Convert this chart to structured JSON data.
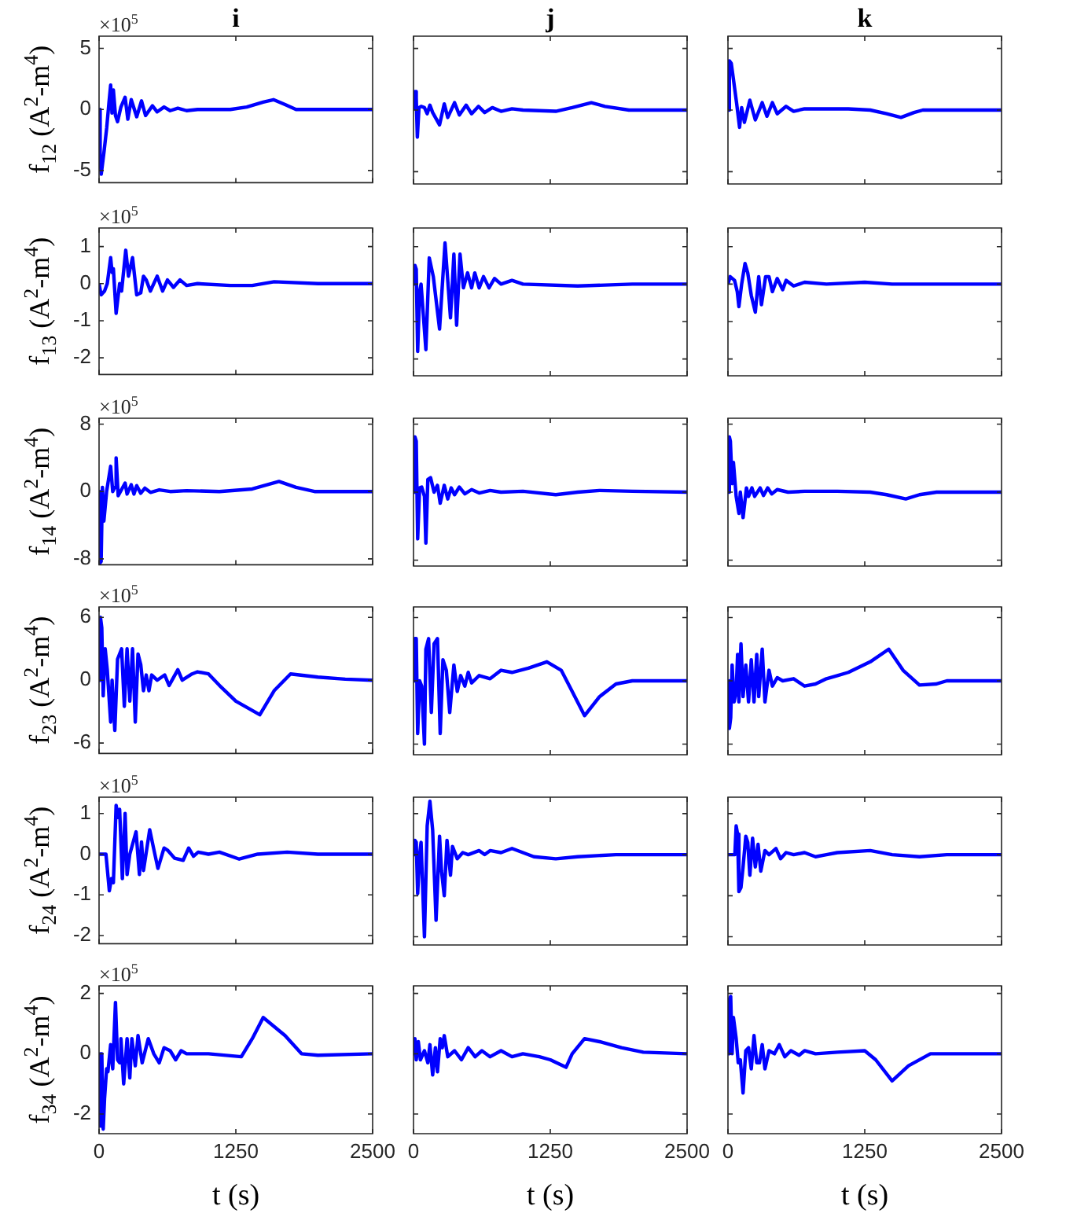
{
  "chart_data": [
    {
      "type": "line",
      "title": "i",
      "ylabel": "f$_{12}$ (A$^{2}$-m$^{4}$)",
      "annotations": [
        "×10$^{5}$"
      ],
      "tick_labels": "y",
      "xlim": [
        0,
        2500
      ],
      "xticks": [
        0,
        1250,
        2500
      ],
      "ylim": [
        -6,
        6
      ],
      "yticks": [
        -5,
        0,
        5
      ],
      "x": [
        0,
        10,
        20,
        45,
        70,
        90,
        106,
        118,
        131,
        150,
        169,
        200,
        238,
        263,
        294,
        344,
        388,
        425,
        488,
        531,
        594,
        650,
        720,
        800,
        900,
        1200,
        1350,
        1500,
        1594,
        1700,
        1800,
        1900,
        2100,
        2500
      ],
      "series": [
        {
          "color": "#0000ff",
          "values": [
            0,
            -4,
            -5.3,
            -3.5,
            -1.5,
            0.5,
            2,
            -0.3,
            1.6,
            -0.5,
            -1,
            0.2,
            1,
            -0.8,
            0.8,
            -0.6,
            0.7,
            -0.5,
            0.3,
            -0.2,
            0.2,
            -0.1,
            0.1,
            -0.1,
            0,
            0,
            0.2,
            0.6,
            0.8,
            0.4,
            0,
            0,
            0,
            0
          ]
        }
      ]
    },
    {
      "type": "line",
      "title": "j",
      "tick_labels": false,
      "xlim": [
        0,
        2500
      ],
      "xticks": [
        0,
        1250,
        2500
      ],
      "ylim": [
        -6,
        6
      ],
      "yticks": [
        -5,
        0,
        5
      ],
      "x": [
        0,
        15,
        25,
        35,
        50,
        70,
        100,
        125,
        150,
        175,
        200,
        238,
        281,
        313,
        375,
        419,
        481,
        531,
        594,
        650,
        720,
        800,
        900,
        1000,
        1300,
        1450,
        1625,
        1750,
        1969,
        2500
      ],
      "series": [
        {
          "color": "#0000ff",
          "values": [
            0,
            1.5,
            1,
            -2.2,
            0.2,
            0.3,
            0.2,
            -0.3,
            0.4,
            -0.2,
            -0.6,
            -1.2,
            0.5,
            -0.6,
            0.6,
            -0.4,
            0.4,
            -0.3,
            0.3,
            -0.2,
            0.2,
            -0.1,
            0.1,
            0,
            -0.1,
            0.2,
            0.6,
            0.3,
            0,
            0
          ]
        }
      ]
    },
    {
      "type": "line",
      "title": "k",
      "tick_labels": false,
      "xlim": [
        0,
        2500
      ],
      "xticks": [
        0,
        1250,
        2500
      ],
      "ylim": [
        -6,
        6
      ],
      "yticks": [
        -5,
        0,
        5
      ],
      "x": [
        0,
        13,
        30,
        50,
        80,
        106,
        125,
        150,
        200,
        250,
        313,
        356,
        406,
        450,
        531,
        600,
        700,
        900,
        1100,
        1300,
        1450,
        1581,
        1700,
        1781,
        2000,
        2500
      ],
      "series": [
        {
          "color": "#0000ff",
          "values": [
            0,
            4,
            3.8,
            2.5,
            0.5,
            -1.4,
            0.2,
            -1,
            0.8,
            -0.8,
            0.6,
            -0.5,
            0.6,
            -0.3,
            0.3,
            -0.1,
            0.1,
            0.1,
            0.1,
            0,
            -0.3,
            -0.6,
            -0.2,
            0,
            0,
            0
          ]
        }
      ]
    },
    {
      "type": "line",
      "ylabel": "f$_{13}$ (A$^{2}$-m$^{4}$)",
      "annotations": [
        "×10$^{5}$"
      ],
      "tick_labels": "y",
      "xlim": [
        0,
        2500
      ],
      "xticks": [
        0,
        1250,
        2500
      ],
      "ylim": [
        -2.45,
        1.5
      ],
      "yticks": [
        -2,
        -1,
        0,
        1
      ],
      "x": [
        0,
        19,
        50,
        75,
        106,
        119,
        131,
        156,
        188,
        206,
        244,
        269,
        306,
        344,
        381,
        406,
        431,
        469,
        531,
        581,
        625,
        680,
        740,
        800,
        900,
        1200,
        1400,
        1600,
        2000,
        2500
      ],
      "series": [
        {
          "color": "#0000ff",
          "values": [
            0,
            -0.3,
            -0.2,
            0,
            0.7,
            0.3,
            0.4,
            -0.8,
            0,
            -0.2,
            0.9,
            0.2,
            0.7,
            -0.3,
            -0.25,
            0.2,
            0.1,
            -0.2,
            0.2,
            -0.2,
            0.1,
            -0.1,
            0.1,
            -0.05,
            0,
            -0.05,
            -0.05,
            0.05,
            0,
            0
          ]
        }
      ]
    },
    {
      "type": "line",
      "tick_labels": false,
      "xlim": [
        0,
        2500
      ],
      "xticks": [
        0,
        1250,
        2500
      ],
      "ylim": [
        -2.45,
        1.5
      ],
      "yticks": [
        -2,
        -1,
        0,
        1
      ],
      "x": [
        0,
        13,
        25,
        38,
        56,
        69,
        113,
        144,
        181,
        238,
        288,
        338,
        369,
        394,
        425,
        456,
        494,
        531,
        560,
        600,
        640,
        690,
        740,
        800,
        900,
        1000,
        1500,
        2000,
        2500
      ],
      "series": [
        {
          "color": "#0000ff",
          "values": [
            0,
            0.5,
            0.4,
            -1.8,
            -0.2,
            0,
            -1.75,
            0.7,
            0.2,
            -1.2,
            1.1,
            -0.9,
            0.8,
            -1.1,
            0.8,
            -0.1,
            0.3,
            -0.1,
            0.3,
            -0.1,
            0.2,
            -0.1,
            0.15,
            0,
            0.1,
            0,
            -0.05,
            0,
            0
          ]
        }
      ]
    },
    {
      "type": "line",
      "tick_labels": false,
      "xlim": [
        0,
        2500
      ],
      "xticks": [
        0,
        1250,
        2500
      ],
      "ylim": [
        -2.45,
        1.5
      ],
      "yticks": [
        -2,
        -1,
        0,
        1
      ],
      "x": [
        0,
        20,
        60,
        85,
        100,
        125,
        156,
        181,
        213,
        250,
        281,
        306,
        344,
        375,
        406,
        450,
        500,
        531,
        600,
        700,
        900,
        1250,
        1500,
        2500
      ],
      "series": [
        {
          "color": "#0000ff",
          "values": [
            0,
            0.2,
            0.1,
            -0.2,
            -0.6,
            0,
            0.55,
            0.3,
            -0.3,
            -0.75,
            0.2,
            -0.55,
            0.2,
            0.2,
            -0.2,
            0.15,
            -0.15,
            0.1,
            -0.05,
            0.05,
            0,
            0.05,
            0,
            0
          ]
        }
      ]
    },
    {
      "type": "line",
      "ylabel": "f$_{14}$ (A$^{2}$-m$^{4}$)",
      "annotations": [
        "×10$^{5}$"
      ],
      "tick_labels": "y",
      "xlim": [
        0,
        2500
      ],
      "xticks": [
        0,
        1250,
        2500
      ],
      "ylim": [
        -8.7,
        8.7
      ],
      "yticks": [
        -8,
        0,
        8
      ],
      "x": [
        0,
        8,
        19,
        31,
        44,
        69,
        106,
        125,
        144,
        156,
        175,
        238,
        256,
        294,
        319,
        344,
        381,
        419,
        470,
        550,
        650,
        800,
        1100,
        1400,
        1644,
        1800,
        1969,
        2500
      ],
      "series": [
        {
          "color": "#0000ff",
          "values": [
            0,
            -8.5,
            -8.3,
            0.5,
            -3.5,
            0,
            3,
            0,
            0.5,
            4,
            -0.5,
            1,
            -0.3,
            0.8,
            -0.3,
            0.7,
            -0.2,
            0.4,
            -0.1,
            0.2,
            0,
            0.1,
            0,
            0.3,
            1.2,
            0.5,
            0,
            0
          ]
        }
      ]
    },
    {
      "type": "line",
      "tick_labels": false,
      "xlim": [
        0,
        2500
      ],
      "xticks": [
        0,
        1250,
        2500
      ],
      "ylim": [
        -8.7,
        8.7
      ],
      "yticks": [
        -8,
        0,
        8
      ],
      "x": [
        0,
        13,
        25,
        38,
        56,
        75,
        100,
        113,
        131,
        156,
        188,
        219,
        244,
        281,
        313,
        344,
        375,
        419,
        469,
        531,
        600,
        700,
        800,
        1000,
        1300,
        1500,
        1700,
        2000,
        2500
      ],
      "series": [
        {
          "color": "#0000ff",
          "values": [
            0,
            6.5,
            6,
            -5.5,
            0.5,
            0.6,
            -0.5,
            -6,
            1.5,
            1.7,
            0,
            0.8,
            -1.3,
            0.8,
            -0.8,
            0.5,
            -0.3,
            0.6,
            -0.2,
            0.3,
            -0.1,
            0.2,
            0,
            0.1,
            -0.3,
            0,
            0.2,
            0.1,
            0
          ]
        }
      ]
    },
    {
      "type": "line",
      "tick_labels": false,
      "xlim": [
        0,
        2500
      ],
      "xticks": [
        0,
        1250,
        2500
      ],
      "ylim": [
        -8.7,
        8.7
      ],
      "yticks": [
        -8,
        0,
        8
      ],
      "x": [
        0,
        13,
        22,
        38,
        50,
        75,
        100,
        113,
        138,
        169,
        188,
        219,
        244,
        294,
        325,
        363,
        400,
        450,
        550,
        700,
        1000,
        1300,
        1450,
        1625,
        1750,
        1906,
        2500
      ],
      "series": [
        {
          "color": "#0000ff",
          "values": [
            0,
            6.5,
            6,
            1,
            3.5,
            -0.5,
            -2.5,
            0,
            -3,
            0.5,
            -0.5,
            0.5,
            -0.5,
            0.5,
            -0.4,
            0.5,
            -0.2,
            0.3,
            0,
            0.1,
            0.1,
            0,
            -0.3,
            -0.8,
            -0.3,
            0,
            0
          ]
        }
      ]
    },
    {
      "type": "line",
      "ylabel": "f$_{23}$ (A$^{2}$-m$^{4}$)",
      "annotations": [
        "×10$^{5}$"
      ],
      "tick_labels": "y",
      "xlim": [
        0,
        2500
      ],
      "xticks": [
        0,
        1250,
        2500
      ],
      "ylim": [
        -7,
        7
      ],
      "yticks": [
        -6,
        0,
        6
      ],
      "x": [
        0,
        13,
        25,
        38,
        56,
        75,
        106,
        119,
        144,
        169,
        206,
        231,
        256,
        281,
        306,
        331,
        356,
        381,
        406,
        431,
        456,
        481,
        531,
        600,
        640,
        720,
        760,
        850,
        900,
        1000,
        1100,
        1250,
        1469,
        1600,
        1750,
        2000,
        2250,
        2500
      ],
      "series": [
        {
          "color": "#0000ff",
          "values": [
            0,
            6,
            5,
            -1.5,
            3,
            1,
            -4,
            0,
            -4.8,
            2,
            3,
            -2.5,
            3,
            -2,
            3,
            -4,
            2.5,
            1.5,
            -1,
            0.5,
            -1,
            0.5,
            0,
            0.5,
            -0.5,
            1,
            0,
            0.6,
            0.8,
            0.6,
            -0.5,
            -2,
            -3.3,
            -1,
            0.6,
            0.3,
            0.1,
            0
          ]
        }
      ]
    },
    {
      "type": "line",
      "tick_labels": false,
      "xlim": [
        0,
        2500
      ],
      "xticks": [
        0,
        1250,
        2500
      ],
      "ylim": [
        -7,
        7
      ],
      "yticks": [
        -6,
        0,
        6
      ],
      "x": [
        0,
        13,
        25,
        38,
        56,
        75,
        100,
        113,
        138,
        163,
        188,
        219,
        244,
        269,
        300,
        331,
        369,
        400,
        431,
        469,
        500,
        531,
        600,
        700,
        800,
        900,
        1050,
        1219,
        1350,
        1450,
        1563,
        1700,
        1850,
        2000,
        2500
      ],
      "series": [
        {
          "color": "#0000ff",
          "values": [
            0,
            4,
            4,
            -5,
            0,
            -0.5,
            -6,
            3,
            4,
            -3,
            3.5,
            4,
            -5,
            2,
            1,
            -3,
            1.5,
            -1,
            0.5,
            -0.5,
            0.8,
            -0.2,
            0.5,
            0.2,
            1,
            0.8,
            1.2,
            1.8,
            1,
            -1,
            -3.3,
            -1.5,
            -0.3,
            0,
            0
          ]
        }
      ]
    },
    {
      "type": "line",
      "tick_labels": false,
      "xlim": [
        0,
        2500
      ],
      "xticks": [
        0,
        1250,
        2500
      ],
      "ylim": [
        -7,
        7
      ],
      "yticks": [
        -6,
        0,
        6
      ],
      "x": [
        0,
        13,
        25,
        38,
        56,
        75,
        88,
        100,
        119,
        138,
        163,
        188,
        213,
        238,
        263,
        281,
        313,
        338,
        375,
        406,
        450,
        500,
        600,
        700,
        800,
        900,
        1000,
        1100,
        1300,
        1469,
        1600,
        1750,
        1900,
        2000,
        2500
      ],
      "series": [
        {
          "color": "#0000ff",
          "values": [
            0,
            -4.5,
            -3.5,
            1.5,
            -2,
            -1,
            2.5,
            -2,
            3.5,
            -1.5,
            1.5,
            -2,
            2,
            -2,
            2.5,
            -1.5,
            3,
            -2,
            1,
            -0.5,
            0.3,
            0,
            0.2,
            -0.5,
            -0.3,
            0.2,
            0.5,
            0.8,
            1.8,
            3,
            1,
            -0.4,
            -0.3,
            0,
            0
          ]
        }
      ]
    },
    {
      "type": "line",
      "ylabel": "f$_{24}$ (A$^{2}$-m$^{4}$)",
      "annotations": [
        "×10$^{5}$"
      ],
      "tick_labels": "y",
      "xlim": [
        0,
        2500
      ],
      "xticks": [
        0,
        1250,
        2500
      ],
      "ylim": [
        -2.2,
        1.4
      ],
      "yticks": [
        -2,
        -1,
        0,
        1
      ],
      "x": [
        0,
        63,
        94,
        113,
        131,
        156,
        175,
        188,
        213,
        238,
        256,
        281,
        338,
        369,
        388,
        406,
        463,
        494,
        538,
        594,
        625,
        690,
        769,
        819,
        863,
        906,
        1000,
        1100,
        1281,
        1450,
        1719,
        2000,
        2500
      ],
      "series": [
        {
          "color": "#0000ff",
          "values": [
            0,
            0,
            -0.9,
            -0.6,
            -0.7,
            1.2,
            0.9,
            1.1,
            -0.6,
            1,
            -0.5,
            0,
            0.55,
            -0.5,
            0.3,
            -0.4,
            0.6,
            0.2,
            -0.35,
            0.15,
            0.1,
            -0.1,
            -0.15,
            0.15,
            -0.05,
            0.05,
            0,
            0.05,
            -0.12,
            0,
            0.05,
            0,
            0
          ]
        }
      ]
    },
    {
      "type": "line",
      "tick_labels": false,
      "xlim": [
        0,
        2500
      ],
      "xticks": [
        0,
        1250,
        2500
      ],
      "ylim": [
        -2.2,
        1.4
      ],
      "yticks": [
        -2,
        -1,
        0,
        1
      ],
      "x": [
        0,
        13,
        25,
        38,
        56,
        69,
        100,
        125,
        150,
        175,
        206,
        238,
        256,
        281,
        306,
        338,
        356,
        400,
        450,
        500,
        600,
        650,
        700,
        800,
        900,
        1000,
        1100,
        1300,
        1500,
        1850,
        2500
      ],
      "series": [
        {
          "color": "#0000ff",
          "values": [
            0,
            0.35,
            0.3,
            -0.95,
            0,
            0.3,
            -2,
            0.7,
            1.3,
            0.6,
            -1.6,
            0.45,
            -0.4,
            -1,
            0.35,
            -0.5,
            0.2,
            -0.1,
            0.05,
            0,
            0.1,
            0,
            0.1,
            0.05,
            0.15,
            0.05,
            -0.05,
            -0.1,
            -0.05,
            0,
            0
          ]
        }
      ]
    },
    {
      "type": "line",
      "tick_labels": false,
      "xlim": [
        0,
        2500
      ],
      "xticks": [
        0,
        1250,
        2500
      ],
      "ylim": [
        -2.2,
        1.4
      ],
      "yticks": [
        -2,
        -1,
        0,
        1
      ],
      "x": [
        0,
        63,
        75,
        88,
        100,
        119,
        138,
        163,
        181,
        200,
        225,
        250,
        275,
        300,
        338,
        375,
        438,
        481,
        531,
        600,
        700,
        800,
        900,
        1000,
        1300,
        1500,
        1750,
        2000,
        2500
      ],
      "series": [
        {
          "color": "#0000ff",
          "values": [
            0,
            0,
            0.7,
            0.5,
            -0.9,
            -0.8,
            -0.3,
            0.45,
            0.3,
            -0.5,
            0.4,
            -0.3,
            0.25,
            -0.4,
            0.1,
            0,
            0.15,
            -0.1,
            0.05,
            0,
            0.05,
            -0.05,
            0,
            0.05,
            0.1,
            0,
            -0.05,
            0,
            0
          ]
        }
      ]
    },
    {
      "type": "line",
      "ylabel": "f$_{34}$ (A$^{2}$-m$^{4}$)",
      "xlabel": "t (s)",
      "annotations": [
        "×10$^{5}$"
      ],
      "xlim": [
        0,
        2500
      ],
      "xticks": [
        0,
        1250,
        2500
      ],
      "ylim": [
        -2.65,
        2.25
      ],
      "yticks": [
        -2,
        0,
        2
      ],
      "x": [
        0,
        13,
        25,
        38,
        50,
        69,
        81,
        106,
        125,
        150,
        169,
        188,
        200,
        225,
        256,
        281,
        300,
        331,
        356,
        394,
        450,
        500,
        550,
        594,
        650,
        700,
        750,
        800,
        1000,
        1300,
        1400,
        1500,
        1700,
        1850,
        2000,
        2500
      ],
      "series": [
        {
          "color": "#0000ff",
          "values": [
            0,
            -2.4,
            0,
            -2.5,
            -1.5,
            -0.5,
            -0.6,
            0.3,
            -0.5,
            1.7,
            -0.2,
            -0.3,
            0.5,
            -1,
            0.5,
            -0.8,
            0.5,
            -0.4,
            0.6,
            -0.3,
            0.5,
            0,
            -0.3,
            0.2,
            0.1,
            -0.2,
            0.1,
            0,
            0,
            -0.1,
            0.5,
            1.2,
            0.6,
            0,
            -0.05,
            0
          ]
        }
      ]
    },
    {
      "type": "line",
      "xlabel": "t (s)",
      "tick_labels": "x",
      "xlim": [
        0,
        2500
      ],
      "xticks": [
        0,
        1250,
        2500
      ],
      "ylim": [
        -2.65,
        2.25
      ],
      "yticks": [
        -2,
        0,
        2
      ],
      "x": [
        0,
        13,
        25,
        44,
        63,
        100,
        131,
        150,
        175,
        200,
        219,
        244,
        263,
        281,
        313,
        375,
        438,
        500,
        563,
        625,
        700,
        800,
        900,
        1000,
        1150,
        1250,
        1394,
        1450,
        1563,
        1700,
        1900,
        2100,
        2500
      ],
      "series": [
        {
          "color": "#0000ff",
          "values": [
            0,
            0.5,
            -0.2,
            0.4,
            -0.2,
            0.1,
            -0.3,
            0.3,
            -0.7,
            0.2,
            -0.6,
            0.5,
            0.2,
            0.6,
            -0.1,
            0.1,
            -0.2,
            0.2,
            -0.1,
            0.1,
            -0.1,
            0.1,
            -0.1,
            0,
            -0.1,
            -0.2,
            -0.45,
            0,
            0.5,
            0.4,
            0.2,
            0.05,
            0
          ]
        }
      ]
    },
    {
      "type": "line",
      "xlabel": "t (s)",
      "tick_labels": "x",
      "xlim": [
        0,
        2500
      ],
      "xticks": [
        0,
        1250,
        2500
      ],
      "ylim": [
        -2.65,
        2.25
      ],
      "yticks": [
        -2,
        0,
        2
      ],
      "x": [
        0,
        13,
        25,
        38,
        50,
        75,
        94,
        113,
        138,
        163,
        188,
        213,
        238,
        263,
        288,
        313,
        338,
        375,
        425,
        469,
        519,
        575,
        650,
        700,
        800,
        1000,
        1250,
        1350,
        1500,
        1650,
        1850,
        2500
      ],
      "series": [
        {
          "color": "#0000ff",
          "values": [
            0,
            1.8,
            1.9,
            0,
            1.2,
            0.5,
            -0.3,
            -0.2,
            -1.3,
            0.1,
            0.2,
            -0.5,
            0.6,
            -0.3,
            -0.3,
            0.3,
            -0.5,
            0.1,
            0,
            0.3,
            -0.1,
            0.1,
            -0.05,
            0.1,
            0,
            0.05,
            0.1,
            -0.2,
            -0.9,
            -0.4,
            0,
            0
          ]
        }
      ]
    }
  ]
}
